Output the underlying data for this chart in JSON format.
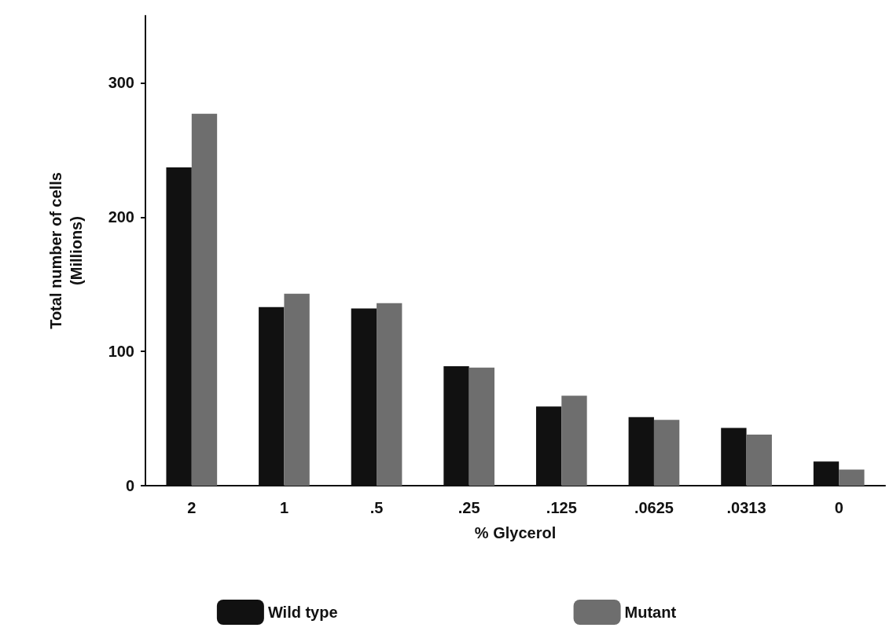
{
  "chart_data": {
    "type": "bar",
    "xlabel": "% Glycerol",
    "ylabel": "Total number of cells\n(Millions)",
    "categories": [
      "2",
      "1",
      ".5",
      ".25",
      ".125",
      ".0625",
      ".0313",
      "0"
    ],
    "series": [
      {
        "name": "Wild type",
        "color": "#111111",
        "values": [
          237,
          133,
          132,
          89,
          59,
          51,
          43,
          18
        ]
      },
      {
        "name": "Mutant",
        "color": "#6e6e6e",
        "values": [
          277,
          143,
          136,
          88,
          67,
          49,
          38,
          12
        ]
      }
    ],
    "ylim": [
      0,
      350
    ],
    "yticks": [
      0,
      100,
      200,
      300
    ],
    "grid": false,
    "legend": "bottom"
  }
}
